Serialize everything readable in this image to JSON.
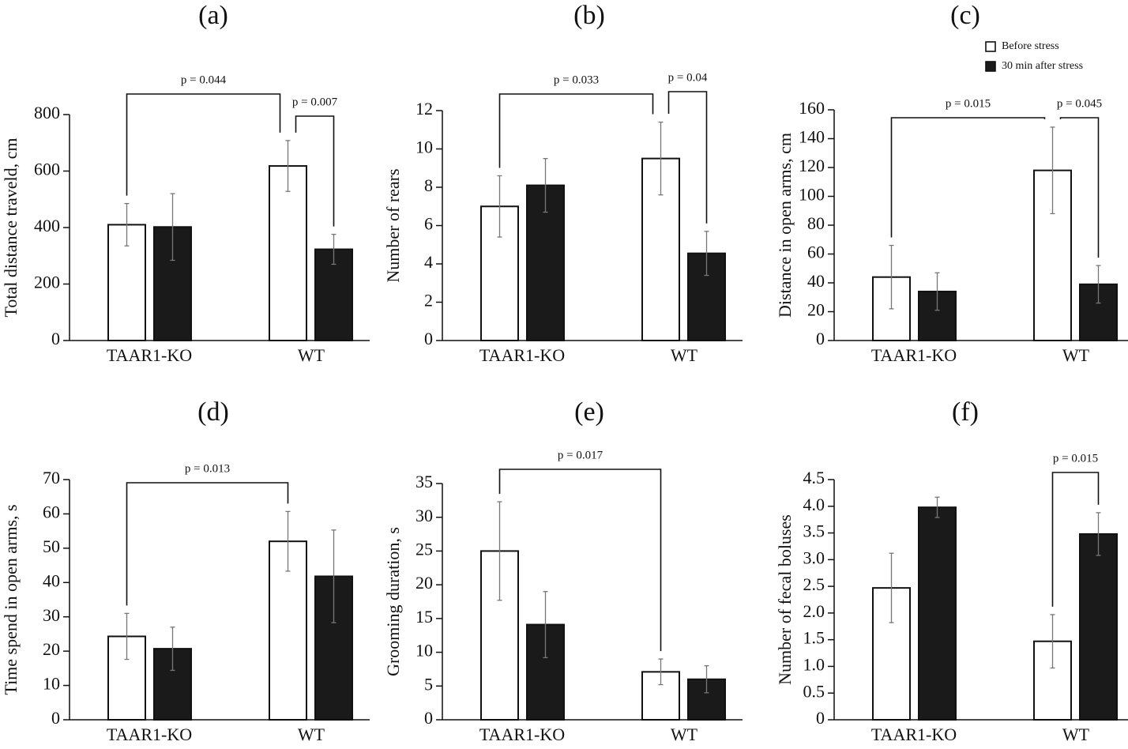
{
  "chart_data": [
    {
      "type": "bar",
      "title": "(a)",
      "y_label": "Total distance traveld, cm",
      "categories": [
        "TAAR1-KO",
        "WT"
      ],
      "series": [
        {
          "color": "#ffffff",
          "values": [
            410,
            618
          ],
          "errors": [
            75,
            90
          ]
        },
        {
          "color": "#1a1a1a",
          "values": [
            402,
            323
          ],
          "errors": [
            118,
            53
          ]
        }
      ],
      "ylim": [
        0,
        800
      ],
      "yticks": [
        0,
        200,
        400,
        600,
        800
      ],
      "annotations": [
        "p = 0.044",
        "p = 0.007"
      ]
    },
    {
      "type": "bar",
      "title": "(b)",
      "y_label": "Number of rears",
      "categories": [
        "TAAR1-KO",
        "WT"
      ],
      "series": [
        {
          "color": "#ffffff",
          "values": [
            7.0,
            9.5
          ],
          "errors": [
            1.6,
            1.9
          ]
        },
        {
          "color": "#1a1a1a",
          "values": [
            8.1,
            4.55
          ],
          "errors": [
            1.4,
            1.15
          ]
        }
      ],
      "ylim": [
        0,
        12
      ],
      "yticks": [
        0,
        2,
        4,
        6,
        8,
        10,
        12
      ],
      "annotations": [
        "p = 0.033",
        "p = 0.04"
      ]
    },
    {
      "type": "bar",
      "title": "(c)",
      "y_label": "Distance in open arms, cm",
      "categories": [
        "TAAR1-KO",
        "WT"
      ],
      "series": [
        {
          "name": "Before stress",
          "color": "#ffffff",
          "values": [
            44,
            118
          ],
          "errors": [
            22,
            30
          ]
        },
        {
          "name": "30 min after stress",
          "color": "#1a1a1a",
          "values": [
            34,
            39
          ],
          "errors": [
            13,
            13
          ]
        }
      ],
      "ylim": [
        0,
        160
      ],
      "yticks": [
        0,
        20,
        40,
        60,
        80,
        100,
        120,
        140,
        160
      ],
      "annotations": [
        "p = 0.015",
        "p = 0.045"
      ],
      "legend": "top-right"
    },
    {
      "type": "bar",
      "title": "(d)",
      "y_label": "Time spend in open arms, s",
      "categories": [
        "TAAR1-KO",
        "WT"
      ],
      "series": [
        {
          "color": "#ffffff",
          "values": [
            24.3,
            52
          ],
          "errors": [
            6.7,
            8.7
          ]
        },
        {
          "color": "#1a1a1a",
          "values": [
            20.7,
            41.8
          ],
          "errors": [
            6.3,
            13.5
          ]
        }
      ],
      "ylim": [
        0,
        70
      ],
      "yticks": [
        0,
        10,
        20,
        30,
        40,
        50,
        60,
        70
      ],
      "annotations": [
        "p = 0.013"
      ]
    },
    {
      "type": "bar",
      "title": "(e)",
      "y_label": "Grooming duration, s",
      "categories": [
        "TAAR1-KO",
        "WT"
      ],
      "series": [
        {
          "color": "#ffffff",
          "values": [
            25,
            7.1
          ],
          "errors": [
            7.3,
            1.9
          ]
        },
        {
          "color": "#1a1a1a",
          "values": [
            14.1,
            6.0
          ],
          "errors": [
            4.9,
            2.0
          ]
        }
      ],
      "ylim": [
        0,
        35
      ],
      "yticks": [
        0,
        5,
        10,
        15,
        20,
        25,
        30,
        35
      ],
      "annotations": [
        "p = 0.017"
      ]
    },
    {
      "type": "bar",
      "title": "(f)",
      "y_label": "Number of fecal boluses",
      "categories": [
        "TAAR1-KO",
        "WT"
      ],
      "series": [
        {
          "color": "#ffffff",
          "values": [
            2.47,
            1.47
          ],
          "errors": [
            0.65,
            0.5
          ]
        },
        {
          "color": "#1a1a1a",
          "values": [
            3.98,
            3.48
          ],
          "errors": [
            0.19,
            0.4
          ]
        }
      ],
      "ylim": [
        0,
        4.5
      ],
      "yticks": [
        0,
        0.5,
        {
          "value": 1,
          "label": "1.0"
        },
        1.5,
        {
          "value": 2,
          "label": "2.0"
        },
        2.5,
        {
          "value": 3,
          "label": "3.0"
        },
        3.5,
        {
          "value": 4,
          "label": "4.0"
        },
        4.5
      ],
      "annotations": [
        "p = 0.015"
      ]
    }
  ]
}
